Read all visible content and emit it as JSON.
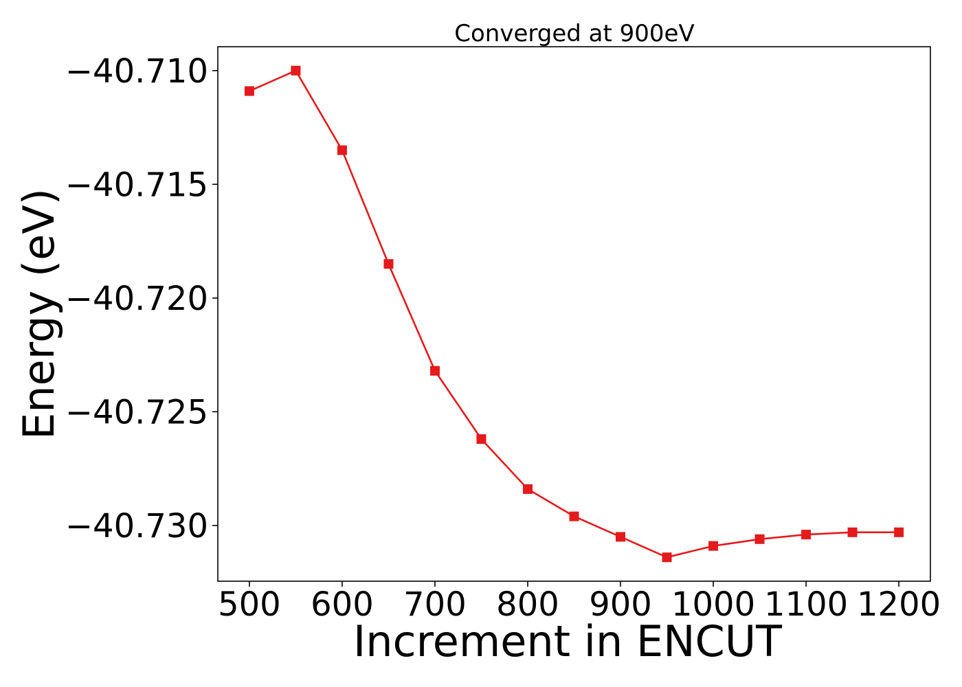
{
  "chart_data": {
    "type": "line",
    "title": "Converged at 900eV",
    "xlabel": "Increment in ENCUT",
    "ylabel": "Energy (eV)",
    "x": [
      500,
      550,
      600,
      650,
      700,
      750,
      800,
      850,
      900,
      950,
      1000,
      1050,
      1100,
      1150,
      1200
    ],
    "series": [
      {
        "marker": "square",
        "color": "#e41a1c",
        "values": [
          -40.7109,
          -40.71,
          -40.7135,
          -40.7185,
          -40.7232,
          -40.7262,
          -40.7284,
          -40.7296,
          -40.7305,
          -40.7314,
          -40.7309,
          -40.7306,
          -40.7304,
          -40.7303,
          -40.7303
        ]
      }
    ],
    "xlim": [
      466,
      1234
    ],
    "ylim": [
      -40.73245,
      -40.70895
    ],
    "xticks": [
      500,
      600,
      700,
      800,
      900,
      1000,
      1100,
      1200
    ],
    "xtick_labels": [
      "500",
      "600",
      "700",
      "800",
      "900",
      "1000",
      "1100",
      "1200"
    ],
    "yticks": [
      -40.71,
      -40.715,
      -40.72,
      -40.725,
      -40.73
    ],
    "ytick_labels": [
      "−40.710",
      "−40.715",
      "−40.720",
      "−40.725",
      "−40.730"
    ],
    "grid": false,
    "legend": "none"
  }
}
